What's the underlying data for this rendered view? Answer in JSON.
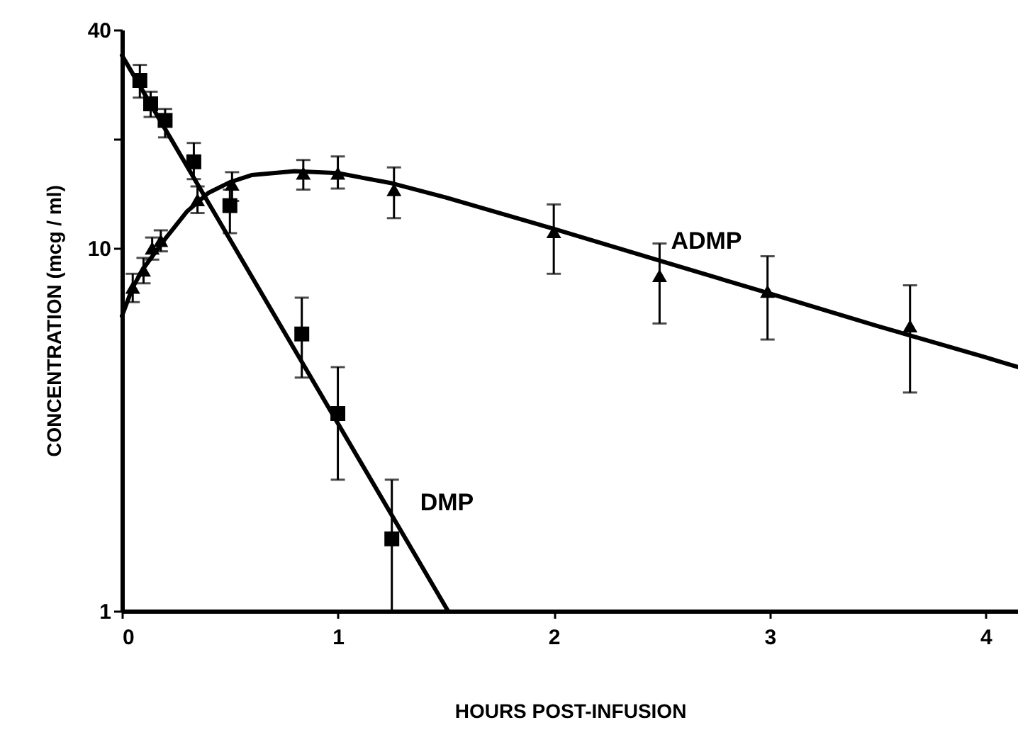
{
  "chart_data": {
    "type": "scatter",
    "xlabel": "HOURS POST-INFUSION",
    "ylabel": "CONCENTRATION (mcg / ml)",
    "log": "y",
    "xlim": [
      0,
      4.15
    ],
    "xticks": [
      0,
      1,
      2,
      3,
      4
    ],
    "ylim": [
      1,
      40
    ],
    "yticks": [
      1,
      10,
      {
        "value": 20,
        "label": null
      },
      40
    ],
    "grid": false,
    "legend": false,
    "series": [
      {
        "name": "DMP",
        "color": "#000000",
        "marker": "square",
        "x": [
          0.083,
          0.133,
          0.2,
          0.333,
          0.5,
          0.833,
          1.0,
          1.25
        ],
        "values": [
          29,
          25,
          22.5,
          17.3,
          13.1,
          5.8,
          3.5,
          1.58
        ],
        "errors": [
          [
            26,
            32
          ],
          [
            23,
            27
          ],
          [
            20.2,
            24.2
          ],
          [
            15.5,
            19.5
          ],
          [
            11,
            14.5
          ],
          [
            4.4,
            7.3
          ],
          [
            2.3,
            4.7
          ],
          [
            1,
            2.3
          ]
        ]
      },
      {
        "name": "ADMP",
        "color": "#000000",
        "marker": "triangle",
        "x": [
          0.05,
          0.1,
          0.14,
          0.18,
          0.35,
          0.51,
          0.84,
          1.0,
          1.26,
          2.0,
          2.49,
          2.99,
          3.65
        ],
        "values": [
          7.8,
          8.7,
          10,
          10.5,
          13.6,
          15,
          16.1,
          16.1,
          14.5,
          11.1,
          8.4,
          7.6,
          6.1
        ],
        "errors": [
          0.7,
          0.7,
          0.7,
          0.7,
          [
            12.5,
            14.8
          ],
          [
            13.5,
            16.2
          ],
          [
            14.5,
            17.5
          ],
          [
            14.6,
            17.9
          ],
          [
            12.1,
            16.7
          ],
          [
            8.5,
            13.2
          ],
          [
            6.2,
            10.3
          ],
          [
            5.6,
            9.5
          ],
          [
            4.0,
            7.9
          ]
        ]
      },
      {
        "type": "line",
        "color": "#000000",
        "x": [
          0,
          1.51
        ],
        "values": [
          34,
          1
        ]
      },
      {
        "type": "line",
        "color": "#000000",
        "x": [
          0,
          0.05,
          0.1,
          0.2,
          0.3,
          0.4,
          0.5,
          0.6,
          0.8,
          1.0,
          1.25,
          1.5,
          2.0,
          2.5,
          3.0,
          3.5,
          4.0,
          4.15
        ],
        "values": [
          6.5,
          7.8,
          8.8,
          10.6,
          12.6,
          14.2,
          15.2,
          15.9,
          16.3,
          16.1,
          15.1,
          13.8,
          11.3,
          9.2,
          7.5,
          6.1,
          5.0,
          4.7
        ]
      }
    ]
  }
}
